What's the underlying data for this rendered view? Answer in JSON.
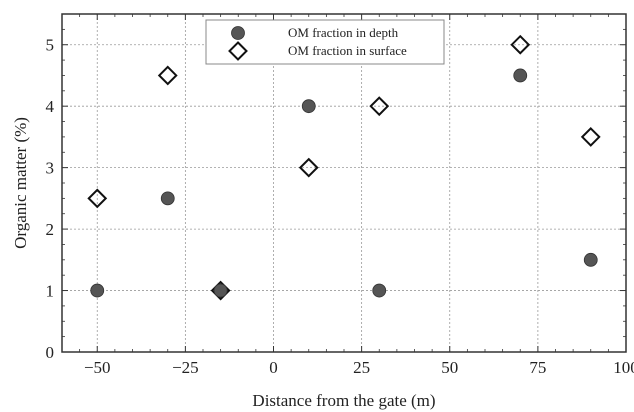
{
  "chart_data": {
    "type": "scatter",
    "xlabel": "Distance from the gate (m)",
    "ylabel": "Organic matter (%)",
    "xlim": [
      -60,
      100
    ],
    "ylim": [
      0,
      5.5
    ],
    "xticks": [
      -50,
      -25,
      0,
      25,
      50,
      75,
      100
    ],
    "yticks": [
      0,
      1,
      2,
      3,
      4,
      5
    ],
    "x_tick_labels": [
      "−50",
      "−25",
      "0",
      "25",
      "50",
      "75",
      "100"
    ],
    "y_tick_labels": [
      "0",
      "1",
      "2",
      "3",
      "4",
      "5"
    ],
    "grid": true,
    "legend_position": "top-center",
    "series": [
      {
        "name": "OM fraction in depth",
        "marker": "circle",
        "color": "#555555",
        "x": [
          -50,
          -30,
          -15,
          10,
          30,
          70,
          90
        ],
        "y": [
          1,
          2.5,
          1,
          4,
          1,
          4.5,
          1.5
        ]
      },
      {
        "name": "OM fraction in surface",
        "marker": "diamond",
        "color": "#111111",
        "x": [
          -50,
          -30,
          -15,
          10,
          30,
          70,
          90
        ],
        "y": [
          2.5,
          4.5,
          1,
          3,
          4,
          5,
          3.5
        ]
      }
    ]
  }
}
